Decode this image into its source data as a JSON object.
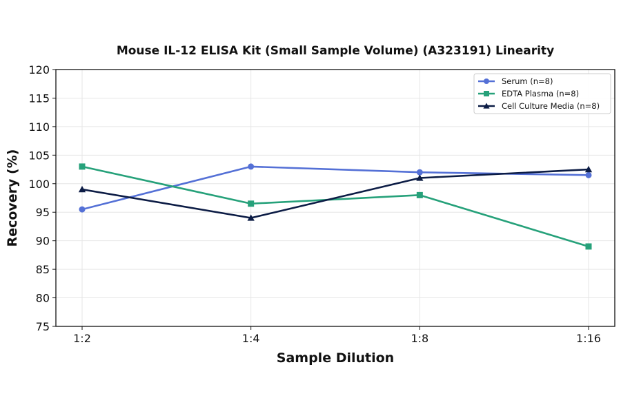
{
  "chart_data": {
    "type": "line",
    "title": "Mouse IL-12 ELISA Kit (Small Sample Volume) (A323191) Linearity",
    "xlabel": "Sample Dilution",
    "ylabel": "Recovery (%)",
    "categories": [
      "1:2",
      "1:4",
      "1:8",
      "1:16"
    ],
    "ylim": [
      75,
      120
    ],
    "yticks": [
      75,
      80,
      85,
      90,
      95,
      100,
      105,
      110,
      115,
      120
    ],
    "grid": true,
    "legend_position": "top-right",
    "series": [
      {
        "name": "Serum (n=8)",
        "values": [
          95.5,
          103,
          102,
          101.5
        ],
        "color": "#5470d6",
        "marker": "circle"
      },
      {
        "name": "EDTA Plasma (n=8)",
        "values": [
          103,
          96.5,
          98,
          89
        ],
        "color": "#26a17a",
        "marker": "square"
      },
      {
        "name": "Cell Culture Media (n=8)",
        "values": [
          99,
          94,
          101,
          102.5
        ],
        "color": "#0c1c45",
        "marker": "triangle"
      }
    ]
  }
}
